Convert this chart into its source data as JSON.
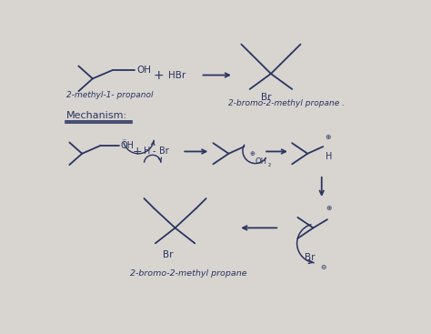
{
  "bg_color": "#d8d4d0",
  "ink_color": "#2a3560",
  "label_2methyl1propanol": "2-methyl-1- propanol",
  "label_product": "2-bromo-2-methyl propane .",
  "label_mechanism": "Mechanism:",
  "label_2bromo_bottom": "2-bromo-2-methyl propane"
}
